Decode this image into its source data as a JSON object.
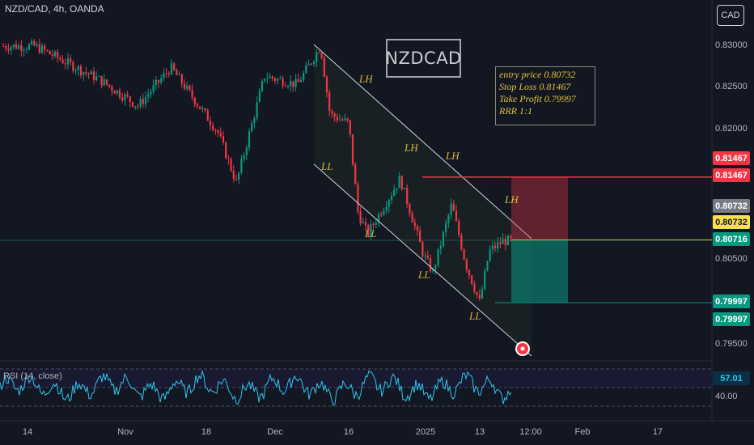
{
  "header": {
    "symbol": "NZD/CAD, 4h, OANDA",
    "currency": "CAD"
  },
  "title_box": "NZDCAD",
  "trade_info": {
    "entry": "entry price  0.80732",
    "stop": "Stop Loss 0.81467",
    "tp": "Take Profit 0.79997",
    "rrr": "RRR 1:1"
  },
  "price_axis": [
    "0.83000",
    "0.82500",
    "0.82000",
    "0.80500",
    "0.79500"
  ],
  "price_tags": [
    {
      "value": "0.81467",
      "bg": "#f23645",
      "fg": "#ffffff"
    },
    {
      "value": "0.81467",
      "bg": "#f23645",
      "fg": "#ffffff"
    },
    {
      "value": "0.80732",
      "bg": "#787b86",
      "fg": "#ffffff"
    },
    {
      "value": "0.80732",
      "bg": "#f7e04b",
      "fg": "#131722"
    },
    {
      "value": "0.80716",
      "bg": "#089981",
      "fg": "#ffffff"
    },
    {
      "value": "0.79997",
      "bg": "#089981",
      "fg": "#ffffff"
    },
    {
      "value": "0.79997",
      "bg": "#089981",
      "fg": "#ffffff"
    },
    {
      "value": "57.01",
      "bg": "#0b2f45",
      "fg": "#2ec7ee"
    }
  ],
  "rsi": {
    "label": "RSI (14, close)",
    "level_low": "40.00",
    "last": "57.01"
  },
  "date_axis": [
    "14",
    "Nov",
    "18",
    "Dec",
    "16",
    "2025",
    "13",
    "12:00",
    "Feb",
    "17"
  ],
  "pattern_labels": [
    "LH",
    "LH",
    "LH",
    "LH",
    "LL",
    "LL",
    "LL",
    "LL"
  ],
  "colors": {
    "up": "#089981",
    "down": "#f23645",
    "rsi": "#2ec7ee",
    "channel": "#d1d4dc",
    "label": "#d6b940"
  },
  "chart_data": {
    "type": "candlestick",
    "symbol": "NZD/CAD",
    "timeframe": "4h",
    "source": "OANDA",
    "ylim": [
      0.7935,
      0.8325
    ],
    "entry": 0.80732,
    "stop_loss": 0.81467,
    "take_profit": 0.79997,
    "last_price": 0.80716,
    "rsi_last": 57.01,
    "trend_path": [
      {
        "date": "Oct 10",
        "price": 0.83
      },
      {
        "date": "Oct 24",
        "price": 0.826
      },
      {
        "date": "Nov 01",
        "price": 0.823
      },
      {
        "date": "Nov 08",
        "price": 0.8275
      },
      {
        "date": "Nov 18",
        "price": 0.82
      },
      {
        "date": "Nov 22",
        "price": 0.814
      },
      {
        "date": "Nov 28",
        "price": 0.8265
      },
      {
        "date": "Dec 05",
        "price": 0.8255
      },
      {
        "date": "Dec 10",
        "price": 0.83
      },
      {
        "date": "Dec 12",
        "price": 0.822
      },
      {
        "date": "Dec 16",
        "price": 0.821
      },
      {
        "date": "Dec 18",
        "price": 0.8105
      },
      {
        "date": "Dec 20",
        "price": 0.808
      },
      {
        "date": "Dec 27",
        "price": 0.8145
      },
      {
        "date": "Jan 01",
        "price": 0.8055
      },
      {
        "date": "Jan 03",
        "price": 0.8035
      },
      {
        "date": "Jan 07",
        "price": 0.8115
      },
      {
        "date": "Jan 10",
        "price": 0.8045
      },
      {
        "date": "Jan 13",
        "price": 0.8
      },
      {
        "date": "Jan 15",
        "price": 0.806
      },
      {
        "date": "Jan 18",
        "price": 0.8072
      }
    ]
  }
}
